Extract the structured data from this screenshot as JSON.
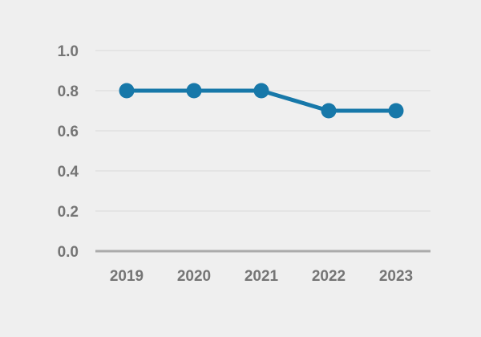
{
  "chart_data": {
    "type": "line",
    "title": "",
    "xlabel": "",
    "ylabel": "",
    "categories": [
      "2019",
      "2020",
      "2021",
      "2022",
      "2023"
    ],
    "series": [
      {
        "name": "value",
        "values": [
          0.8,
          0.8,
          0.8,
          0.7,
          0.7
        ]
      }
    ],
    "ylim": [
      0.0,
      1.0
    ],
    "yticks": [
      0.0,
      0.2,
      0.4,
      0.6,
      0.8,
      1.0
    ],
    "ytick_labels": [
      "0.0",
      "0.2",
      "0.4",
      "0.6",
      "0.8",
      "1.0"
    ],
    "grid": true,
    "legend": false,
    "colors": {
      "background": "#efefef",
      "line": "#1778a9",
      "marker": "#1778a9",
      "gridline": "#e4e4e4",
      "baseline": "#ababab",
      "tick_label": "#757575"
    }
  }
}
